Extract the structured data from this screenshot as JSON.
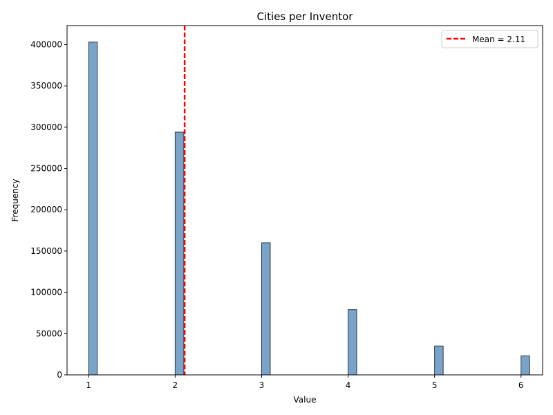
{
  "chart_data": {
    "type": "bar",
    "title": "Cities per Inventor",
    "xlabel": "Value",
    "ylabel": "Frequency",
    "x": [
      1,
      2,
      3,
      4,
      5,
      6
    ],
    "values": [
      403000,
      294000,
      160000,
      79000,
      35000,
      23000
    ],
    "xlim": [
      0.75,
      6.25
    ],
    "ylim": [
      0,
      423000
    ],
    "xticks": [
      1,
      2,
      3,
      4,
      5,
      6
    ],
    "yticks": [
      0,
      50000,
      100000,
      150000,
      200000,
      250000,
      300000,
      350000,
      400000
    ],
    "mean_line": {
      "value": 2.11,
      "label": "Mean = 2.11",
      "color": "#ff0000",
      "style": "dashed"
    },
    "bar_color": "#7aa3c8",
    "bar_edge_color": "#2b3a48",
    "grid": false,
    "legend_placement": "top-right"
  }
}
